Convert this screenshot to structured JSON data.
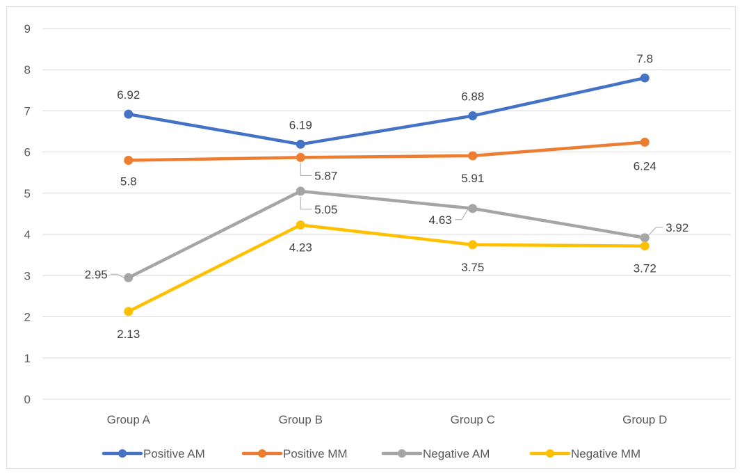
{
  "chart_data": {
    "type": "line",
    "title": "",
    "xlabel": "",
    "ylabel": "",
    "categories": [
      "Group A",
      "Group B",
      "Group C",
      "Group D"
    ],
    "ylim": [
      0,
      9
    ],
    "y_ticks": [
      0,
      1,
      2,
      3,
      4,
      5,
      6,
      7,
      8,
      9
    ],
    "grid": true,
    "legend_position": "bottom",
    "series": [
      {
        "name": "Positive AM",
        "color": "#4472C4",
        "values": [
          6.92,
          6.19,
          6.88,
          7.8
        ],
        "labels": [
          "6.92",
          "6.19",
          "6.88",
          "7.8"
        ]
      },
      {
        "name": "Positive MM",
        "color": "#ED7D31",
        "values": [
          5.8,
          5.87,
          5.91,
          6.24
        ],
        "labels": [
          "5.8",
          "5.87",
          "5.91",
          "6.24"
        ]
      },
      {
        "name": "Negative AM",
        "color": "#A5A5A5",
        "values": [
          2.95,
          5.05,
          4.63,
          3.92
        ],
        "labels": [
          "2.95",
          "5.05",
          "4.63",
          "3.92"
        ]
      },
      {
        "name": "Negative MM",
        "color": "#FFC000",
        "values": [
          2.13,
          4.23,
          3.75,
          3.72
        ],
        "labels": [
          "2.13",
          "4.23",
          "3.75",
          "3.72"
        ]
      }
    ]
  }
}
